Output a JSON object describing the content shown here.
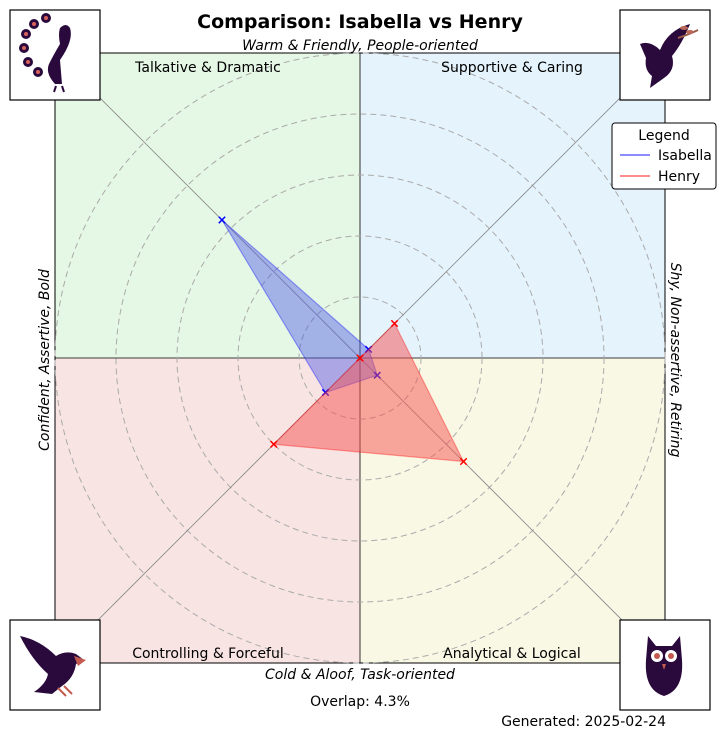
{
  "chart_data": {
    "type": "radar",
    "title": "Comparison: Isabella vs Henry",
    "axis_labels": {
      "top": "Warm & Friendly, People-oriented",
      "bottom": "Cold & Aloof, Task-oriented",
      "left": "Confident, Assertive, Bold",
      "right": "Shy, Non-assertive, Retiring"
    },
    "quadrants": {
      "top_left": {
        "label": "Talkative & Dramatic",
        "color": "#e5f7e5",
        "icon": "peacock-icon"
      },
      "top_right": {
        "label": "Supportive & Caring",
        "color": "#e5f3fc",
        "icon": "dove-icon"
      },
      "bottom_left": {
        "label": "Controlling & Forceful",
        "color": "#f9e4e4",
        "icon": "eagle-icon"
      },
      "bottom_right": {
        "label": "Analytical & Logical",
        "color": "#f9f8e5",
        "icon": "owl-icon"
      }
    },
    "directions": [
      "Talkative & Dramatic",
      "Supportive & Caring",
      "Analytical & Logical",
      "Controlling & Forceful"
    ],
    "r_max": 5,
    "grid": true,
    "legend": {
      "title": "Legend",
      "placement": "top-right"
    },
    "series": [
      {
        "name": "Isabella",
        "color": "#0000ff",
        "fill": "rgba(80,90,230,0.45)",
        "values": [
          3.2,
          0.2,
          0.4,
          0.8
        ]
      },
      {
        "name": "Henry",
        "color": "#ff0000",
        "fill": "rgba(245,80,80,0.5)",
        "values": [
          0.0,
          0.8,
          2.4,
          2.0
        ]
      }
    ],
    "overlap_text": "Overlap: 4.3%",
    "generated_text": "Generated: 2025-02-24"
  }
}
